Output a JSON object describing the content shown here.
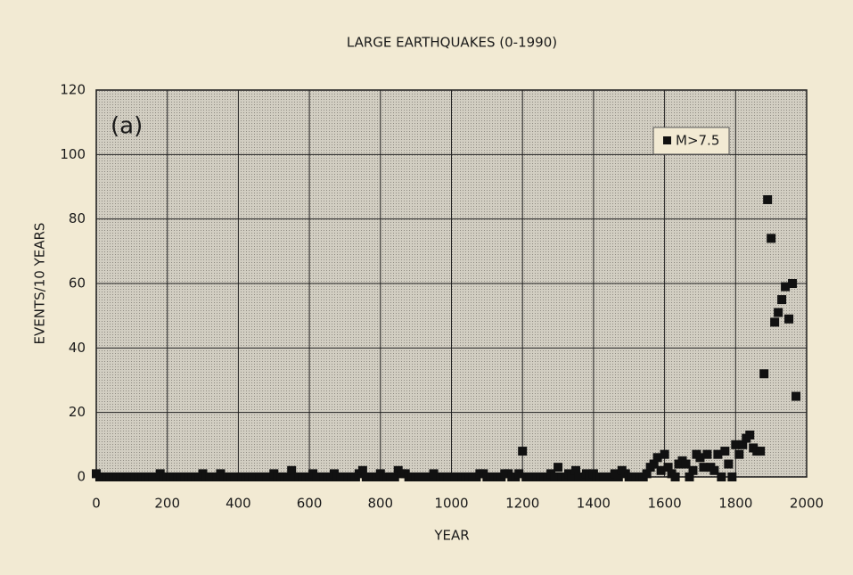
{
  "chart_data": {
    "type": "scatter",
    "title": "LARGE EARTHQUAKES (0-1990)",
    "annotation": "(a)",
    "x_label": "YEAR",
    "y_label": "EVENTS/10 YEARS",
    "xlim": [
      0,
      2000
    ],
    "xticks": [
      0,
      200,
      400,
      600,
      800,
      1000,
      1200,
      1400,
      1600,
      1800,
      2000
    ],
    "ylim": [
      0,
      120
    ],
    "yticks": [
      0,
      20,
      40,
      60,
      80,
      100,
      120
    ],
    "grid": true,
    "legend": "upper right",
    "series": [
      {
        "name": "M>7.5",
        "color": "#111111",
        "x": [
          0,
          10,
          20,
          30,
          40,
          50,
          60,
          70,
          80,
          90,
          100,
          110,
          120,
          130,
          140,
          150,
          160,
          170,
          180,
          190,
          200,
          210,
          220,
          230,
          240,
          250,
          260,
          270,
          280,
          290,
          300,
          310,
          320,
          330,
          340,
          350,
          360,
          370,
          380,
          390,
          400,
          410,
          420,
          430,
          440,
          450,
          460,
          470,
          480,
          490,
          500,
          510,
          520,
          530,
          540,
          550,
          560,
          570,
          580,
          590,
          600,
          610,
          620,
          630,
          640,
          650,
          660,
          670,
          680,
          690,
          700,
          710,
          720,
          730,
          740,
          750,
          760,
          770,
          780,
          790,
          800,
          810,
          820,
          830,
          840,
          850,
          860,
          870,
          880,
          890,
          900,
          910,
          920,
          930,
          940,
          950,
          960,
          970,
          980,
          990,
          1000,
          1010,
          1020,
          1030,
          1040,
          1050,
          1060,
          1070,
          1080,
          1090,
          1100,
          1110,
          1120,
          1130,
          1140,
          1150,
          1160,
          1170,
          1180,
          1190,
          1200,
          1210,
          1220,
          1230,
          1240,
          1250,
          1260,
          1270,
          1280,
          1290,
          1300,
          1310,
          1320,
          1330,
          1340,
          1350,
          1360,
          1370,
          1380,
          1390,
          1400,
          1410,
          1420,
          1430,
          1440,
          1450,
          1460,
          1470,
          1480,
          1490,
          1500,
          1510,
          1520,
          1530,
          1540,
          1550,
          1560,
          1570,
          1580,
          1590,
          1600,
          1610,
          1620,
          1630,
          1640,
          1650,
          1660,
          1670,
          1680,
          1690,
          1700,
          1710,
          1720,
          1730,
          1740,
          1750,
          1760,
          1770,
          1780,
          1790,
          1800,
          1810,
          1820,
          1830,
          1840,
          1850,
          1860,
          1870,
          1880,
          1890,
          1900,
          1910,
          1920,
          1930,
          1940,
          1950,
          1960,
          1970
        ],
        "values": [
          1,
          0,
          0,
          0,
          0,
          0,
          0,
          0,
          0,
          0,
          0,
          0,
          0,
          0,
          0,
          0,
          0,
          0,
          1,
          0,
          0,
          0,
          0,
          0,
          0,
          0,
          0,
          0,
          0,
          0,
          1,
          0,
          0,
          0,
          0,
          1,
          0,
          0,
          0,
          0,
          0,
          0,
          0,
          0,
          0,
          0,
          0,
          0,
          0,
          0,
          1,
          0,
          0,
          0,
          0,
          2,
          0,
          0,
          0,
          0,
          0,
          1,
          0,
          0,
          0,
          0,
          0,
          1,
          0,
          0,
          0,
          0,
          0,
          0,
          1,
          2,
          0,
          0,
          0,
          0,
          1,
          0,
          0,
          0,
          0,
          2,
          1,
          1,
          0,
          0,
          0,
          0,
          0,
          0,
          0,
          1,
          0,
          0,
          0,
          0,
          0,
          0,
          0,
          0,
          0,
          0,
          0,
          0,
          1,
          1,
          0,
          0,
          0,
          0,
          0,
          1,
          1,
          0,
          0,
          1,
          8,
          0,
          0,
          0,
          0,
          0,
          0,
          0,
          1,
          0,
          3,
          0,
          0,
          1,
          0,
          2,
          0,
          0,
          1,
          0,
          1,
          0,
          0,
          0,
          0,
          0,
          1,
          0,
          2,
          1,
          0,
          0,
          0,
          0,
          0,
          1,
          3,
          4,
          6,
          2,
          7,
          3,
          1,
          0,
          4,
          5,
          4,
          0,
          2,
          7,
          6,
          3,
          7,
          3,
          2,
          7,
          0,
          8,
          4,
          0,
          10,
          7,
          10,
          12,
          13,
          9,
          8,
          8,
          32,
          86,
          74,
          48,
          51,
          55,
          59,
          49,
          60,
          25
        ]
      }
    ]
  }
}
